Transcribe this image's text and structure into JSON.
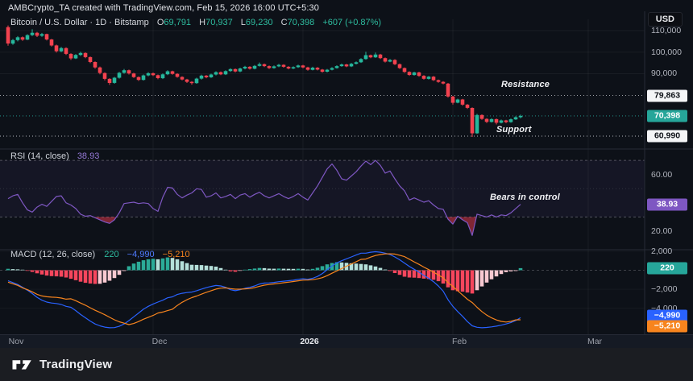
{
  "header": {
    "attribution": "AMBCrypto_TA created with TradingView.com, Feb 15, 2026 16:00 UTC+5:30"
  },
  "toolbar": {
    "currency_label": "USD"
  },
  "main_legend": {
    "title": "Bitcoin / U.S. Dollar · 1D · Bitstamp",
    "o_label": "O",
    "o": "69,791",
    "h_label": "H",
    "h": "70,937",
    "l_label": "L",
    "l": "69,230",
    "c_label": "C",
    "c": "70,398",
    "change": "+607 (+0.87%)"
  },
  "rsi_legend": {
    "name": "RSI (14, close)",
    "value": "38.93"
  },
  "macd_legend": {
    "name": "MACD (12, 26, close)",
    "hist": "220",
    "macd": "−4,990",
    "signal": "−5,210"
  },
  "annotations": {
    "resistance": "Resistance",
    "support": "Support",
    "bears": "Bears in control"
  },
  "footer": {
    "brand": "TradingView"
  },
  "chart_data": {
    "type": "candlestick",
    "title": "Bitcoin / U.S. Dollar · 1D · Bitstamp",
    "panels": [
      "price",
      "rsi_14",
      "macd_12_26_9"
    ],
    "candle_unit": "thousand USD, [open,high,low,close], daily from Nov 1",
    "candles": [
      [
        111.6,
        112.4,
        103.0,
        104.0
      ],
      [
        104.0,
        106.1,
        103.4,
        105.6
      ],
      [
        105.6,
        107.4,
        105.0,
        106.9
      ],
      [
        106.9,
        107.3,
        105.2,
        105.8
      ],
      [
        105.8,
        108.3,
        105.6,
        107.9
      ],
      [
        107.9,
        110.6,
        107.5,
        109.0
      ],
      [
        109.0,
        109.4,
        107.0,
        107.6
      ],
      [
        107.6,
        108.9,
        107.1,
        108.4
      ],
      [
        108.4,
        108.6,
        105.4,
        105.9
      ],
      [
        105.9,
        106.2,
        102.6,
        103.1
      ],
      [
        103.1,
        103.5,
        99.8,
        100.4
      ],
      [
        100.4,
        102.4,
        100.0,
        101.9
      ],
      [
        101.9,
        102.2,
        98.7,
        99.2
      ],
      [
        99.2,
        99.5,
        96.4,
        97.1
      ],
      [
        97.1,
        99.1,
        96.8,
        98.7
      ],
      [
        98.7,
        100.2,
        98.2,
        99.6
      ],
      [
        99.6,
        99.9,
        97.2,
        97.7
      ],
      [
        97.7,
        98.0,
        94.9,
        95.4
      ],
      [
        95.4,
        95.7,
        92.3,
        92.9
      ],
      [
        92.9,
        93.3,
        89.7,
        90.3
      ],
      [
        90.3,
        90.6,
        86.9,
        87.6
      ],
      [
        87.6,
        87.9,
        84.8,
        85.7
      ],
      [
        85.7,
        88.5,
        85.3,
        88.1
      ],
      [
        88.1,
        90.8,
        87.7,
        90.4
      ],
      [
        90.4,
        92.2,
        90.0,
        91.6
      ],
      [
        91.6,
        91.9,
        89.6,
        90.1
      ],
      [
        90.1,
        90.4,
        88.0,
        88.4
      ],
      [
        88.4,
        88.7,
        86.6,
        87.1
      ],
      [
        87.1,
        89.6,
        86.8,
        89.2
      ],
      [
        89.2,
        90.7,
        88.8,
        90.2
      ],
      [
        90.2,
        90.5,
        88.9,
        89.3
      ],
      [
        89.3,
        89.6,
        87.4,
        87.9
      ],
      [
        87.9,
        90.1,
        87.5,
        89.7
      ],
      [
        89.7,
        91.6,
        89.3,
        91.1
      ],
      [
        91.1,
        91.4,
        89.5,
        89.9
      ],
      [
        89.9,
        90.2,
        88.1,
        88.5
      ],
      [
        88.5,
        88.8,
        86.9,
        87.3
      ],
      [
        87.3,
        87.6,
        85.7,
        86.2
      ],
      [
        86.2,
        86.5,
        84.9,
        85.6
      ],
      [
        85.6,
        88.1,
        85.3,
        87.7
      ],
      [
        87.7,
        89.5,
        87.3,
        89.1
      ],
      [
        89.1,
        89.4,
        87.9,
        88.3
      ],
      [
        88.3,
        90.0,
        88.0,
        89.6
      ],
      [
        89.6,
        91.1,
        89.2,
        90.7
      ],
      [
        90.7,
        91.0,
        89.3,
        89.7
      ],
      [
        89.7,
        91.6,
        89.4,
        91.2
      ],
      [
        91.2,
        92.5,
        90.8,
        92.1
      ],
      [
        92.1,
        92.4,
        90.6,
        91.0
      ],
      [
        91.0,
        92.8,
        90.7,
        92.4
      ],
      [
        92.4,
        93.6,
        92.0,
        93.2
      ],
      [
        93.2,
        93.5,
        91.9,
        92.3
      ],
      [
        92.3,
        94.0,
        92.0,
        93.6
      ],
      [
        93.6,
        95.2,
        93.3,
        94.4
      ],
      [
        94.4,
        94.7,
        93.1,
        93.5
      ],
      [
        93.5,
        93.8,
        92.2,
        92.6
      ],
      [
        92.6,
        93.8,
        92.3,
        93.4
      ],
      [
        93.4,
        94.5,
        93.0,
        94.1
      ],
      [
        94.1,
        94.4,
        92.8,
        93.2
      ],
      [
        93.2,
        93.5,
        92.0,
        92.4
      ],
      [
        92.4,
        93.4,
        92.1,
        93.0
      ],
      [
        93.0,
        94.2,
        92.7,
        93.8
      ],
      [
        93.8,
        94.1,
        92.5,
        92.9
      ],
      [
        92.9,
        93.2,
        91.4,
        91.8
      ],
      [
        91.8,
        93.2,
        91.5,
        92.8
      ],
      [
        92.8,
        93.1,
        91.5,
        91.9
      ],
      [
        91.9,
        92.2,
        90.5,
        90.9
      ],
      [
        90.9,
        92.2,
        90.6,
        91.8
      ],
      [
        91.8,
        93.0,
        91.5,
        92.6
      ],
      [
        92.6,
        93.9,
        92.3,
        93.5
      ],
      [
        93.5,
        94.7,
        93.2,
        94.3
      ],
      [
        94.3,
        94.6,
        93.0,
        93.4
      ],
      [
        93.4,
        95.0,
        93.1,
        94.6
      ],
      [
        94.6,
        95.7,
        94.3,
        95.3
      ],
      [
        95.3,
        97.2,
        95.0,
        96.8
      ],
      [
        96.8,
        100.2,
        96.5,
        98.6
      ],
      [
        98.6,
        98.9,
        97.2,
        97.6
      ],
      [
        97.6,
        99.8,
        97.3,
        98.9
      ],
      [
        98.9,
        99.2,
        96.8,
        97.2
      ],
      [
        97.2,
        97.5,
        95.2,
        95.6
      ],
      [
        95.6,
        96.8,
        95.3,
        96.4
      ],
      [
        96.4,
        96.7,
        94.0,
        94.4
      ],
      [
        94.4,
        94.7,
        92.2,
        92.6
      ],
      [
        92.6,
        92.9,
        90.4,
        90.8
      ],
      [
        90.8,
        91.1,
        89.0,
        89.4
      ],
      [
        89.4,
        90.9,
        89.1,
        90.6
      ],
      [
        90.6,
        90.9,
        88.6,
        89.0
      ],
      [
        89.0,
        89.3,
        87.2,
        87.6
      ],
      [
        87.6,
        88.9,
        87.3,
        88.6
      ],
      [
        88.6,
        88.9,
        86.6,
        87.0
      ],
      [
        87.0,
        87.3,
        85.8,
        86.2
      ],
      [
        86.2,
        86.5,
        85.0,
        85.4
      ],
      [
        85.4,
        85.7,
        78.9,
        79.4
      ],
      [
        79.4,
        79.7,
        75.6,
        76.5
      ],
      [
        76.5,
        78.4,
        76.2,
        78.0
      ],
      [
        78.0,
        78.3,
        75.1,
        75.6
      ],
      [
        75.6,
        75.9,
        73.6,
        74.1
      ],
      [
        74.1,
        74.4,
        60.6,
        62.3
      ],
      [
        62.3,
        71.3,
        62.0,
        70.8
      ],
      [
        70.8,
        71.1,
        68.6,
        69.0
      ],
      [
        69.0,
        69.3,
        67.1,
        67.6
      ],
      [
        67.6,
        69.3,
        67.3,
        68.9
      ],
      [
        68.9,
        69.2,
        66.4,
        67.2
      ],
      [
        67.2,
        68.7,
        66.9,
        68.3
      ],
      [
        68.3,
        68.6,
        67.0,
        67.5
      ],
      [
        67.5,
        69.2,
        67.2,
        68.8
      ],
      [
        68.8,
        70.2,
        68.5,
        69.8
      ],
      [
        69.791,
        70.937,
        69.23,
        70.398
      ]
    ],
    "rsi": [
      43,
      45,
      46,
      40,
      35,
      33.5,
      37,
      39,
      37.5,
      41,
      44.5,
      45,
      40,
      38.5,
      36,
      32,
      30.5,
      31,
      29.5,
      28,
      26.5,
      25.5,
      28,
      33,
      39.5,
      40,
      40.5,
      39.5,
      40,
      39.5,
      36,
      34,
      44,
      51,
      50.5,
      46,
      43.5,
      45.5,
      47,
      50,
      49.5,
      44,
      45,
      47,
      43.5,
      44.5,
      46,
      43,
      45.5,
      46.5,
      44,
      46,
      47.5,
      45,
      43.5,
      45,
      46.5,
      44.5,
      43,
      44.5,
      46.5,
      44,
      42,
      47,
      52,
      58,
      64,
      67.5,
      63,
      57,
      56,
      59,
      62,
      66,
      69.5,
      67,
      70,
      66.5,
      61,
      62.5,
      57,
      52,
      48.5,
      42,
      43.5,
      42,
      40.5,
      41.5,
      38.5,
      36,
      35.5,
      28.5,
      25,
      30.5,
      28,
      26,
      17,
      32,
      31,
      30,
      31.5,
      30,
      31.5,
      31,
      33,
      36,
      38.93
    ],
    "macd": [
      -1100,
      -1300,
      -1500,
      -1800,
      -2100,
      -2450,
      -2850,
      -3150,
      -3350,
      -3450,
      -3500,
      -3600,
      -3800,
      -3900,
      -4250,
      -4650,
      -5000,
      -5350,
      -5650,
      -5850,
      -5980,
      -6050,
      -6030,
      -5900,
      -5650,
      -5300,
      -4900,
      -4500,
      -4100,
      -3800,
      -3550,
      -3350,
      -3150,
      -2900,
      -2800,
      -2550,
      -2420,
      -2350,
      -2300,
      -2150,
      -1980,
      -1830,
      -1700,
      -1600,
      -1650,
      -1800,
      -2050,
      -2150,
      -2050,
      -1900,
      -1800,
      -1650,
      -1450,
      -1350,
      -1330,
      -1280,
      -1200,
      -1150,
      -1100,
      -1050,
      -950,
      -900,
      -950,
      -850,
      -650,
      -350,
      50,
      450,
      780,
      1000,
      1200,
      1400,
      1600,
      1800,
      1800,
      1900,
      1950,
      1900,
      1800,
      1650,
      1400,
      1100,
      750,
      400,
      100,
      -200,
      -550,
      -850,
      -1200,
      -1650,
      -2200,
      -3100,
      -3800,
      -4350,
      -4850,
      -5400,
      -5850,
      -6000,
      -6050,
      -6020,
      -5960,
      -5880,
      -5780,
      -5650,
      -5500,
      -5300,
      -4990
    ],
    "signal": [
      -1250,
      -1420,
      -1590,
      -1860,
      -2040,
      -2270,
      -2530,
      -2700,
      -2790,
      -2830,
      -2860,
      -2920,
      -3040,
      -3000,
      -3200,
      -3450,
      -3680,
      -3950,
      -4210,
      -4430,
      -4680,
      -4950,
      -5210,
      -5420,
      -5570,
      -5720,
      -5600,
      -5400,
      -5150,
      -4950,
      -4750,
      -4500,
      -4400,
      -4250,
      -4100,
      -3700,
      -3370,
      -3100,
      -2880,
      -2710,
      -2520,
      -2320,
      -2150,
      -1980,
      -1880,
      -1860,
      -1930,
      -1990,
      -1990,
      -1960,
      -1920,
      -1830,
      -1690,
      -1570,
      -1500,
      -1440,
      -1380,
      -1310,
      -1250,
      -1190,
      -1110,
      -1040,
      -1030,
      -990,
      -910,
      -780,
      -570,
      -310,
      -70,
      180,
      420,
      660,
      900,
      1140,
      1180,
      1380,
      1550,
      1650,
      1720,
      1730,
      1700,
      1580,
      1430,
      1160,
      880,
      620,
      330,
      70,
      -200,
      -500,
      -800,
      -1300,
      -1700,
      -2150,
      -2600,
      -3050,
      -3400,
      -3900,
      -4350,
      -4720,
      -5010,
      -5230,
      -5380,
      -5450,
      -5380,
      -5220,
      -5210
    ],
    "levels": {
      "resistance": 79863,
      "support": 60990,
      "last_price": 70398
    },
    "rsi_levels": [
      70,
      50,
      30
    ],
    "axes": {
      "price_ticks": [
        {
          "label": "110,000",
          "value": 110000
        },
        {
          "label": "100,000",
          "value": 100000
        },
        {
          "label": "90,000",
          "value": 90000
        }
      ],
      "price_badges": [
        {
          "label": "79,863",
          "value": 79863,
          "style": "white"
        },
        {
          "label": "70,398",
          "value": 70398,
          "style": "teal"
        },
        {
          "label": "60,990",
          "value": 60990,
          "style": "white"
        }
      ],
      "rsi_ticks": [
        {
          "label": "60.00",
          "value": 60
        },
        {
          "label": "20.00",
          "value": 20
        }
      ],
      "rsi_badge": {
        "label": "38.93",
        "value": 38.93,
        "style": "purple"
      },
      "macd_ticks": [
        {
          "label": "2,000",
          "value": 2000
        },
        {
          "label": "−2,000",
          "value": -2000
        },
        {
          "label": "−4,000",
          "value": -4000
        }
      ],
      "macd_badges": [
        {
          "label": "220",
          "value": 220,
          "style": "teal"
        },
        {
          "label": "−4,990",
          "value": -4990,
          "style": "blue"
        },
        {
          "label": "−5,210",
          "value": -5210,
          "style": "orange"
        }
      ],
      "time_ticks": [
        {
          "label": "Nov",
          "day": 0,
          "bold": false
        },
        {
          "label": "Dec",
          "day": 30,
          "bold": false
        },
        {
          "label": "2026",
          "day": 61,
          "bold": true
        },
        {
          "label": "Feb",
          "day": 92,
          "bold": false
        },
        {
          "label": "Mar",
          "day": 120,
          "bold": false
        }
      ]
    },
    "colors": {
      "up": "#26b79c",
      "down": "#f3424f",
      "rsi_line": "#7e57c2",
      "rsi_band": "rgba(126,87,194,0.08)",
      "rsi_oversold_fill": "rgba(244,60,80,0.5)",
      "macd_line": "#2962ff",
      "signal_line": "#f7841e",
      "hist_pos": "#2bab98",
      "hist_pos_light": "#b5e0da",
      "hist_neg": "#f6465d",
      "hist_neg_light": "#f8c9d1",
      "accent_teal": "#26a69a",
      "badge_blue": "#2962ff",
      "badge_orange": "#f7841e",
      "badge_purple": "#7e57c2",
      "badge_white": "#f4f5f7"
    }
  }
}
